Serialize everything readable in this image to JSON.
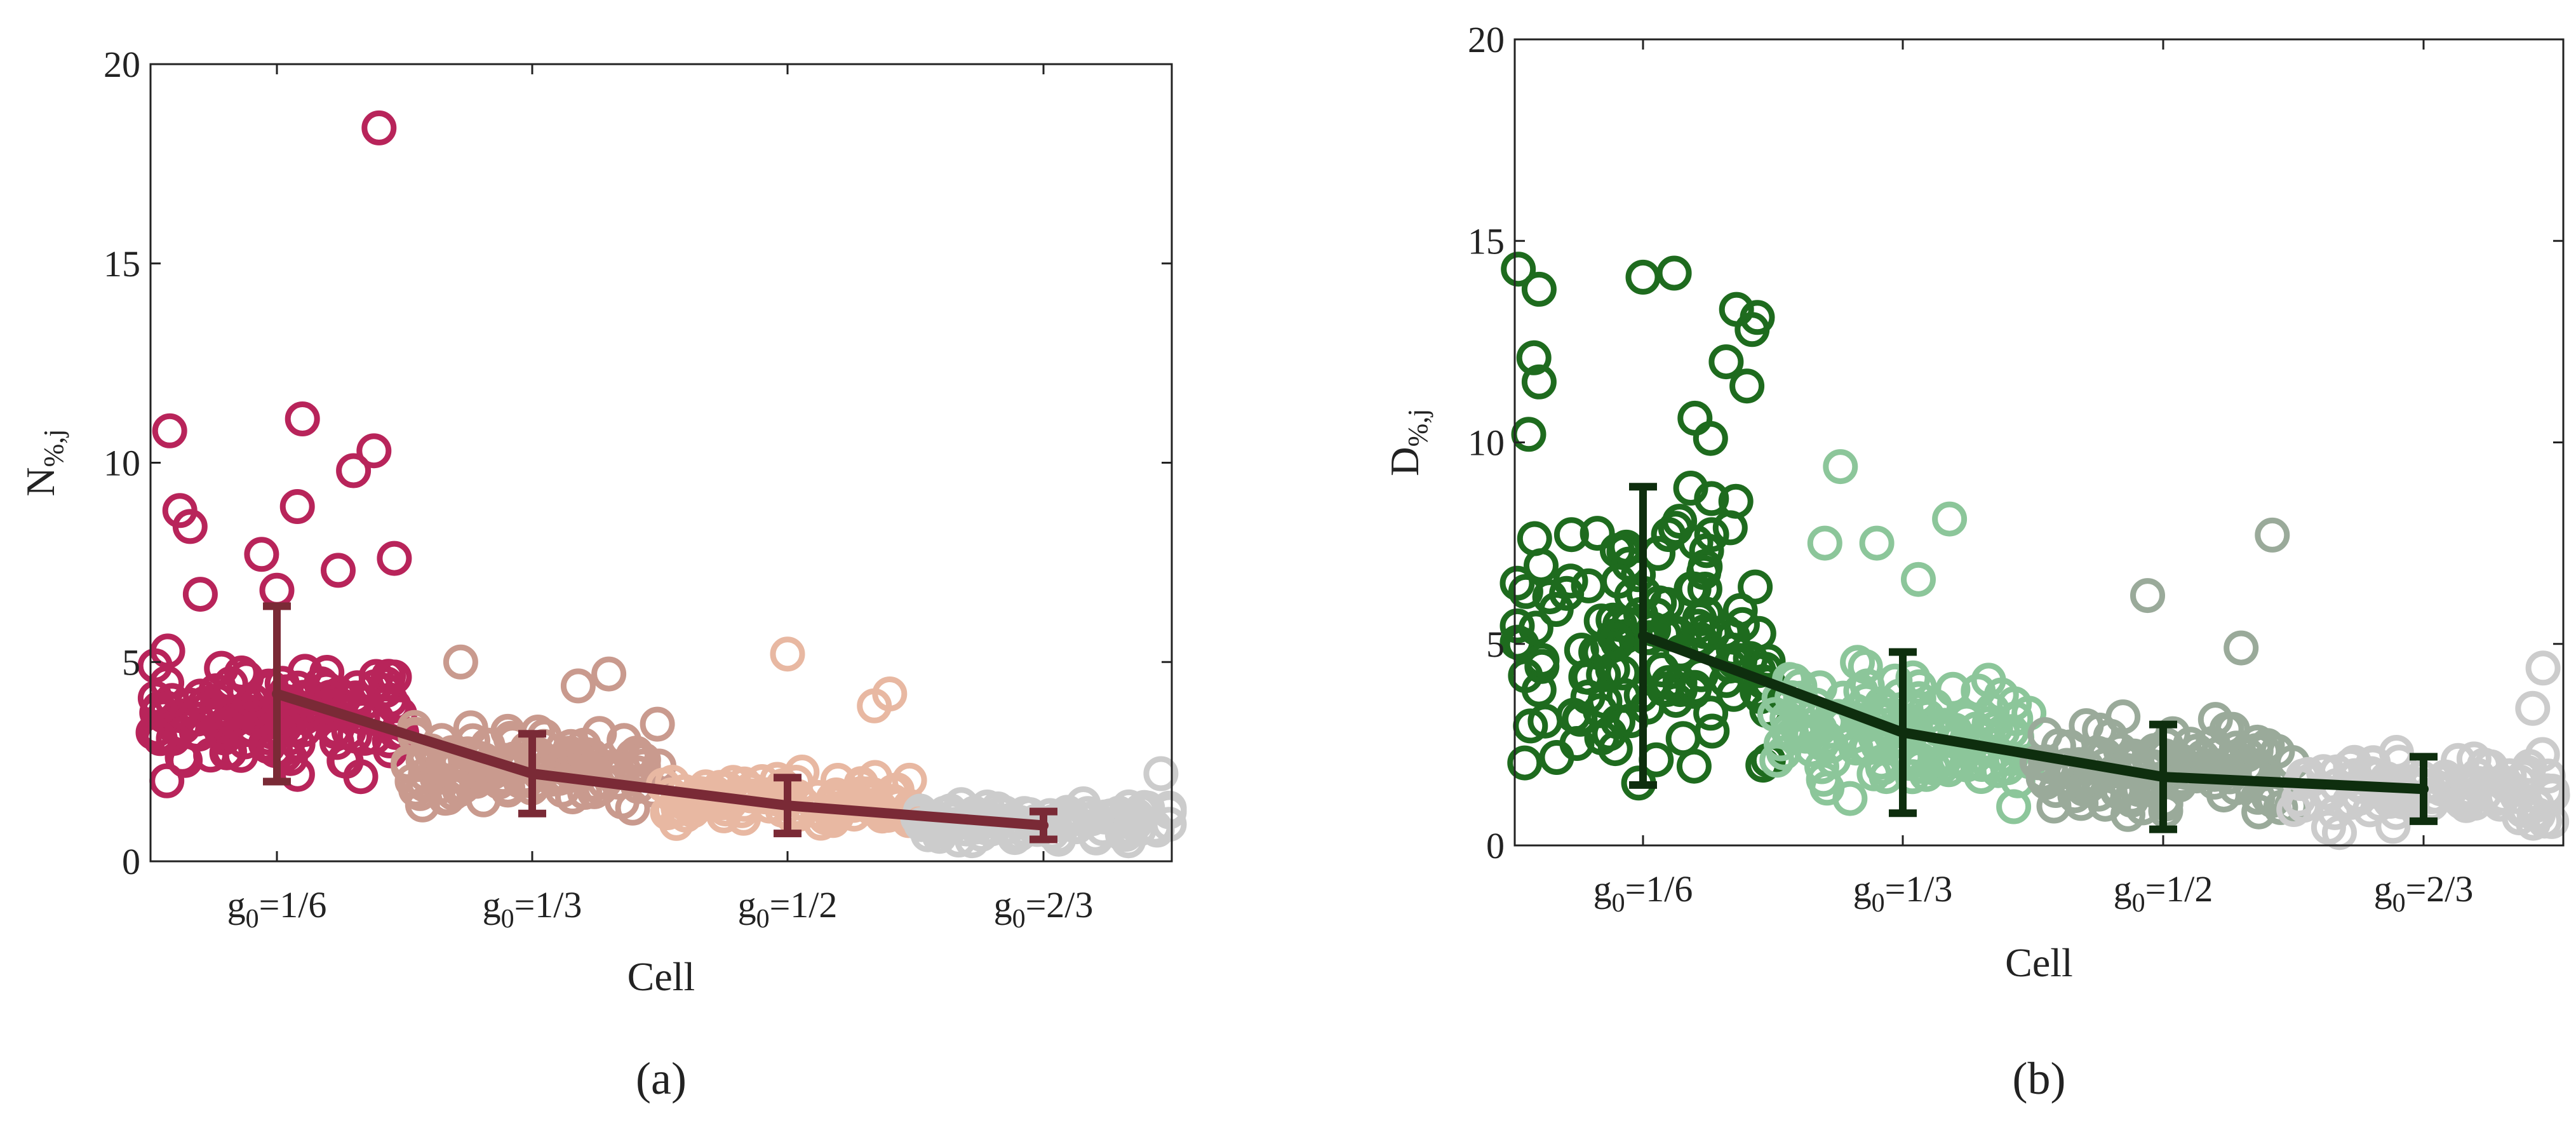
{
  "chart_data": [
    {
      "type": "scatter",
      "panel_label": "(a)",
      "xlabel": "Cell",
      "ylabel_base": "N",
      "ylabel_sub": "%,j",
      "ylim": [
        0,
        20
      ],
      "yticks": [
        "0",
        "5",
        "10",
        "15",
        "20"
      ],
      "categories": [
        "g0=1/6",
        "g0=1/3",
        "g0=1/2",
        "g0=2/3"
      ],
      "category_ticks": [
        {
          "base": "g",
          "sub": "0",
          "rest": "=1/6"
        },
        {
          "base": "g",
          "sub": "0",
          "rest": "=1/3"
        },
        {
          "base": "g",
          "sub": "0",
          "rest": "=1/2"
        },
        {
          "base": "g",
          "sub": "0",
          "rest": "=2/3"
        }
      ],
      "series": [
        {
          "name": "g0=1/6",
          "color": "#b8245a",
          "seed": 11,
          "count": 130,
          "center": 3.6,
          "spread": 1.1,
          "low": 1.2,
          "outliers": [
            [
              -0.42,
              10.8
            ],
            [
              -0.38,
              8.8
            ],
            [
              -0.34,
              8.4
            ],
            [
              0.1,
              11.1
            ],
            [
              0.4,
              18.4
            ],
            [
              0.3,
              9.8
            ],
            [
              0.38,
              10.3
            ],
            [
              0.24,
              7.3
            ],
            [
              0.46,
              7.6
            ],
            [
              0.08,
              8.9
            ],
            [
              -0.06,
              7.7
            ],
            [
              0.0,
              6.8
            ],
            [
              -0.3,
              6.7
            ]
          ]
        },
        {
          "name": "g0=1/3",
          "color": "#c99a8e",
          "seed": 23,
          "count": 120,
          "center": 2.4,
          "spread": 0.9,
          "low": 0.5,
          "outliers": [
            [
              -0.28,
              5.0
            ],
            [
              0.3,
              4.7
            ],
            [
              0.18,
              4.4
            ]
          ]
        },
        {
          "name": "g0=1/2",
          "color": "#e8b8a2",
          "seed": 37,
          "count": 110,
          "center": 1.5,
          "spread": 0.5,
          "low": 0.5,
          "outliers": [
            [
              0.0,
              5.2
            ],
            [
              0.4,
              4.2
            ],
            [
              0.34,
              3.9
            ]
          ]
        },
        {
          "name": "g0=2/3",
          "color": "#cccccc",
          "seed": 53,
          "count": 100,
          "center": 1.0,
          "spread": 0.45,
          "low": 0.3,
          "outliers": [
            [
              0.46,
              2.2
            ]
          ]
        }
      ],
      "mean_line": {
        "color": "#7a2a36",
        "means": [
          4.2,
          2.2,
          1.4,
          0.9
        ],
        "errors": [
          2.2,
          1.0,
          0.7,
          0.35
        ]
      }
    },
    {
      "type": "scatter",
      "panel_label": "(b)",
      "xlabel": "Cell",
      "ylabel_base": "D",
      "ylabel_sub": "%,j",
      "ylim": [
        0,
        20
      ],
      "yticks": [
        "0",
        "5",
        "10",
        "15",
        "20"
      ],
      "categories": [
        "g0=1/6",
        "g0=1/3",
        "g0=1/2",
        "g0=2/3"
      ],
      "category_ticks": [
        {
          "base": "g",
          "sub": "0",
          "rest": "=1/6"
        },
        {
          "base": "g",
          "sub": "0",
          "rest": "=1/3"
        },
        {
          "base": "g",
          "sub": "0",
          "rest": "=1/2"
        },
        {
          "base": "g",
          "sub": "0",
          "rest": "=2/3"
        }
      ],
      "series": [
        {
          "name": "g0=1/6",
          "color": "#1e6b1e",
          "seed": 71,
          "count": 140,
          "center": 5.0,
          "spread": 2.8,
          "low": 0.0,
          "outliers": [
            [
              -0.48,
              14.3
            ],
            [
              0.0,
              14.1
            ],
            [
              0.12,
              14.2
            ],
            [
              -0.4,
              13.8
            ],
            [
              0.36,
              13.3
            ],
            [
              0.44,
              13.1
            ],
            [
              0.42,
              12.8
            ],
            [
              -0.42,
              12.1
            ],
            [
              -0.4,
              11.5
            ],
            [
              0.32,
              12.0
            ],
            [
              0.4,
              11.4
            ],
            [
              -0.44,
              10.2
            ],
            [
              0.26,
              10.1
            ],
            [
              0.2,
              10.6
            ]
          ]
        },
        {
          "name": "g0=1/3",
          "color": "#8cc69a",
          "seed": 89,
          "count": 130,
          "center": 2.8,
          "spread": 1.4,
          "low": 0.0,
          "outliers": [
            [
              -0.24,
              9.4
            ],
            [
              0.18,
              8.1
            ],
            [
              -0.3,
              7.5
            ],
            [
              -0.1,
              7.5
            ],
            [
              0.06,
              6.6
            ]
          ]
        },
        {
          "name": "g0=1/2",
          "color": "#9aaa9a",
          "seed": 101,
          "count": 115,
          "center": 1.9,
          "spread": 1.0,
          "low": 0.0,
          "outliers": [
            [
              -0.06,
              6.2
            ],
            [
              0.42,
              7.7
            ],
            [
              0.3,
              4.9
            ]
          ]
        },
        {
          "name": "g0=2/3",
          "color": "#cccccc",
          "seed": 127,
          "count": 110,
          "center": 1.4,
          "spread": 0.8,
          "low": 0.0,
          "outliers": [
            [
              0.46,
              4.4
            ],
            [
              0.42,
              3.4
            ]
          ]
        }
      ],
      "mean_line": {
        "color": "#0e2e0e",
        "means": [
          5.2,
          2.8,
          1.7,
          1.4
        ],
        "errors": [
          3.7,
          2.0,
          1.3,
          0.8
        ]
      }
    }
  ]
}
